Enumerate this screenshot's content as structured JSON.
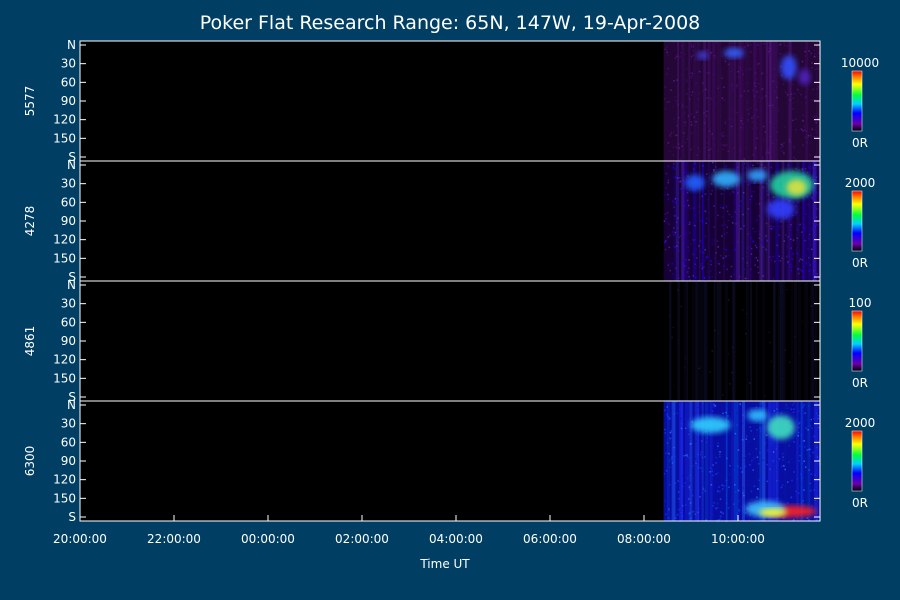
{
  "chart_data": {
    "type": "heatmap",
    "title": "Poker Flat Research Range: 65N, 147W, 19-Apr-2008",
    "xlabel": "Time UT",
    "x_ticks": [
      "20:00:00",
      "22:00:00",
      "00:00:00",
      "02:00:00",
      "04:00:00",
      "06:00:00",
      "08:00:00",
      "10:00:00"
    ],
    "y_ticks": [
      "N",
      "30",
      "60",
      "90",
      "120",
      "150",
      "S"
    ],
    "data_start": "08:25:00",
    "panels": [
      {
        "label": "5577",
        "cbar_max": "10000",
        "cbar_min": "0R"
      },
      {
        "label": "4278",
        "cbar_max": "2000",
        "cbar_min": "0R"
      },
      {
        "label": "4861",
        "cbar_max": "100",
        "cbar_min": "0R"
      },
      {
        "label": "6300",
        "cbar_max": "2000",
        "cbar_min": "0R"
      }
    ]
  }
}
